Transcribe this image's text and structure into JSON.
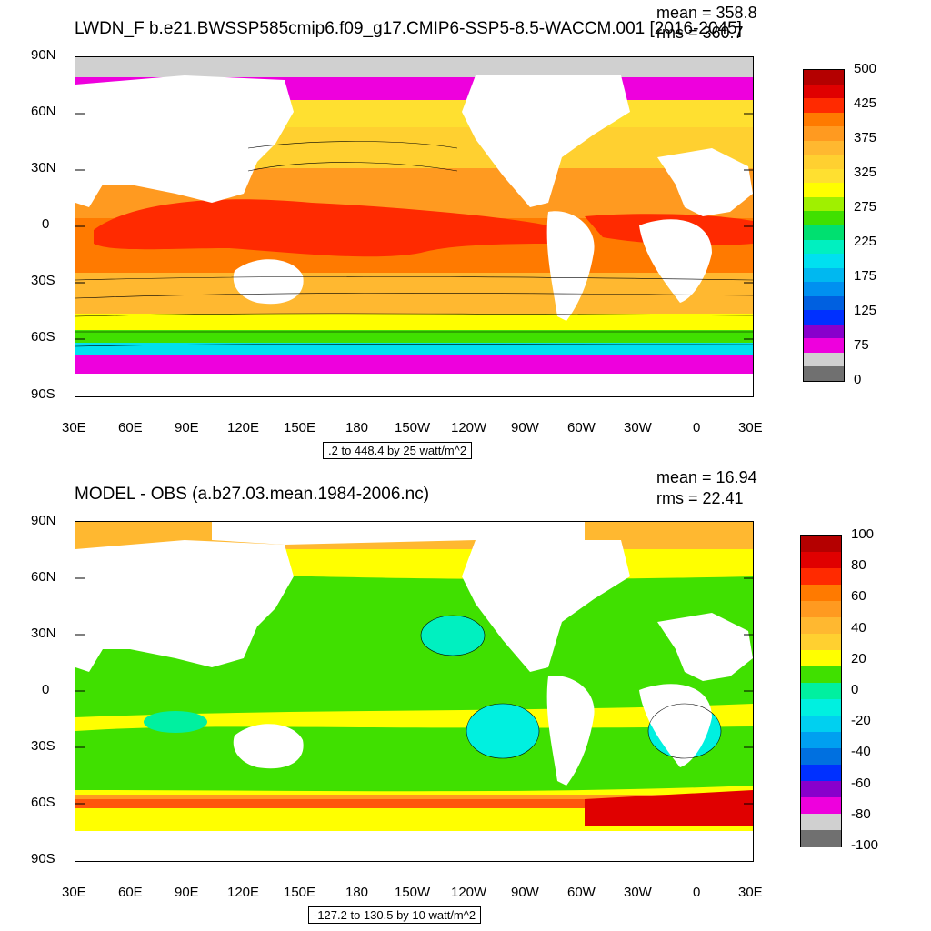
{
  "panel1": {
    "title": "LWDN_F b.e21.BWSSP585cmip6.f09_g17.CMIP6-SSP5-8.5-WACCM.001 [2016-2045]",
    "mean": "mean = 358.8",
    "rms": "rms = 360.7",
    "range": ".2 to 448.4 by 25 watt/m^2",
    "colorbar_labels": [
      "500",
      "425",
      "375",
      "325",
      "275",
      "225",
      "175",
      "125",
      "75",
      "0"
    ],
    "colorbar_colors": [
      "#b40000",
      "#e00000",
      "#ff2a00",
      "#ff7a00",
      "#ff9a20",
      "#ffb830",
      "#ffd030",
      "#ffe030",
      "#ffff00",
      "#a0f000",
      "#40e000",
      "#00e070",
      "#00f0c0",
      "#00e0f0",
      "#00b8f0",
      "#0090f0",
      "#0060e0",
      "#0030ff",
      "#8800cc",
      "#ee00dd",
      "#d0d0d0",
      "#707070"
    ]
  },
  "panel2": {
    "title": "MODEL - OBS (a.b27.03.mean.1984-2006.nc)",
    "mean": "mean = 16.94",
    "rms": "rms = 22.41",
    "range": "-127.2 to 130.5 by 10 watt/m^2",
    "colorbar_labels": [
      "100",
      "80",
      "60",
      "40",
      "20",
      "0",
      "-20",
      "-40",
      "-60",
      "-80",
      "-100"
    ],
    "colorbar_colors": [
      "#b40000",
      "#e00000",
      "#ff2a00",
      "#ff7a00",
      "#ff9a20",
      "#ffb830",
      "#ffd030",
      "#ffff00",
      "#40e000",
      "#00f0a0",
      "#00f0e0",
      "#00d0f0",
      "#00a0f0",
      "#0070e0",
      "#0030ff",
      "#8800cc",
      "#ee00dd",
      "#d0d0d0",
      "#707070"
    ]
  },
  "axes": {
    "lat_labels": [
      "90N",
      "60N",
      "30N",
      "0",
      "30S",
      "60S",
      "90S"
    ],
    "lon_labels": [
      "30E",
      "60E",
      "90E",
      "120E",
      "150E",
      "180",
      "150W",
      "120W",
      "90W",
      "60W",
      "30W",
      "0",
      "30E"
    ]
  }
}
